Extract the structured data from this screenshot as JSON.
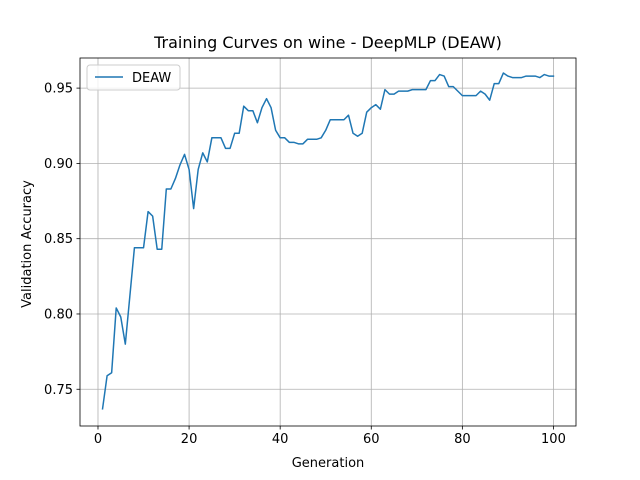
{
  "chart_data": {
    "type": "line",
    "title": "Training Curves on wine - DeepMLP (DEAW)",
    "xlabel": "Generation",
    "ylabel": "Validation Accuracy",
    "xlim": [
      -3.95,
      104.95
    ],
    "ylim": [
      0.7256,
      0.97
    ],
    "xticks": [
      0,
      20,
      40,
      60,
      80,
      100
    ],
    "yticks": [
      0.75,
      0.8,
      0.85,
      0.9,
      0.95
    ],
    "xtick_labels": [
      "0",
      "20",
      "40",
      "60",
      "80",
      "100"
    ],
    "ytick_labels": [
      "0.75",
      "0.80",
      "0.85",
      "0.90",
      "0.95"
    ],
    "grid": true,
    "legend": "upper-left",
    "series": [
      {
        "name": "DEAW",
        "color": "#1f77b4",
        "x": [
          1,
          2,
          3,
          4,
          5,
          6,
          7,
          8,
          9,
          10,
          11,
          12,
          13,
          14,
          15,
          16,
          17,
          18,
          19,
          20,
          21,
          22,
          23,
          24,
          25,
          26,
          27,
          28,
          29,
          30,
          31,
          32,
          33,
          34,
          35,
          36,
          37,
          38,
          39,
          40,
          41,
          42,
          43,
          44,
          45,
          46,
          47,
          48,
          49,
          50,
          51,
          52,
          53,
          54,
          55,
          56,
          57,
          58,
          59,
          60,
          61,
          62,
          63,
          64,
          65,
          66,
          67,
          68,
          69,
          70,
          71,
          72,
          73,
          74,
          75,
          76,
          77,
          78,
          79,
          80,
          81,
          82,
          83,
          84,
          85,
          86,
          87,
          88,
          89,
          90,
          91,
          92,
          93,
          94,
          95,
          96,
          97,
          98,
          99,
          100
        ],
        "values": [
          0.737,
          0.759,
          0.761,
          0.804,
          0.798,
          0.78,
          0.812,
          0.844,
          0.844,
          0.844,
          0.868,
          0.865,
          0.843,
          0.843,
          0.883,
          0.883,
          0.89,
          0.899,
          0.906,
          0.896,
          0.87,
          0.896,
          0.907,
          0.901,
          0.917,
          0.917,
          0.917,
          0.91,
          0.91,
          0.92,
          0.92,
          0.938,
          0.935,
          0.935,
          0.927,
          0.937,
          0.943,
          0.937,
          0.922,
          0.917,
          0.917,
          0.914,
          0.914,
          0.913,
          0.913,
          0.916,
          0.916,
          0.916,
          0.917,
          0.922,
          0.929,
          0.929,
          0.929,
          0.929,
          0.932,
          0.92,
          0.918,
          0.92,
          0.934,
          0.937,
          0.939,
          0.936,
          0.949,
          0.946,
          0.946,
          0.948,
          0.948,
          0.948,
          0.949,
          0.949,
          0.949,
          0.949,
          0.955,
          0.955,
          0.959,
          0.958,
          0.951,
          0.951,
          0.948,
          0.945,
          0.945,
          0.945,
          0.945,
          0.948,
          0.946,
          0.942,
          0.953,
          0.953,
          0.96,
          0.958,
          0.957,
          0.957,
          0.957,
          0.958,
          0.958,
          0.958,
          0.957,
          0.959,
          0.958,
          0.958
        ]
      }
    ]
  }
}
